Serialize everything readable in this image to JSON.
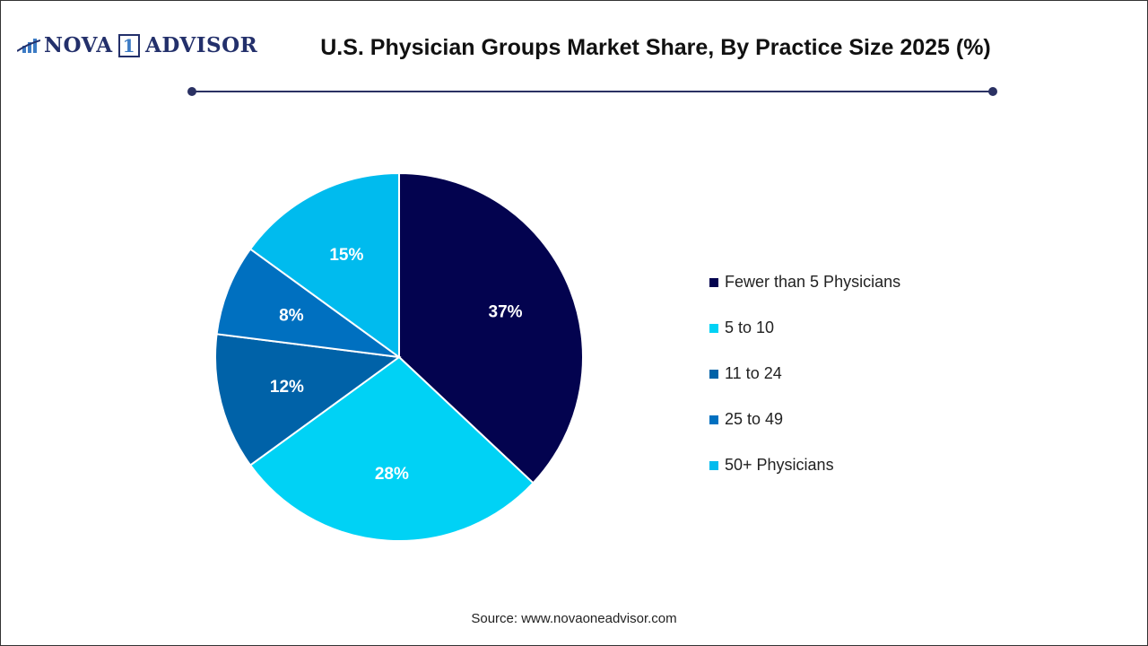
{
  "logo_text": {
    "part1": "NOVA",
    "part2": "1",
    "part3": "ADVISOR"
  },
  "chart_data": {
    "type": "pie",
    "title": "U.S. Physician Groups Market Share, By Practice Size 2025 (%)",
    "categories": [
      "Fewer than 5 Physicians",
      "5 to 10",
      "11 to 24",
      "25 to 49",
      "50+ Physicians"
    ],
    "values": [
      37,
      28,
      12,
      8,
      15
    ],
    "labels": [
      "37%",
      "28%",
      "12%",
      "8%",
      "15%"
    ],
    "colors": [
      "#03034f",
      "#00d2f5",
      "#0062a8",
      "#0070c0",
      "#00bbee"
    ],
    "start": "top",
    "direction": "clockwise",
    "legend_position": "right"
  },
  "source": "Source: www.novaoneadvisor.com"
}
